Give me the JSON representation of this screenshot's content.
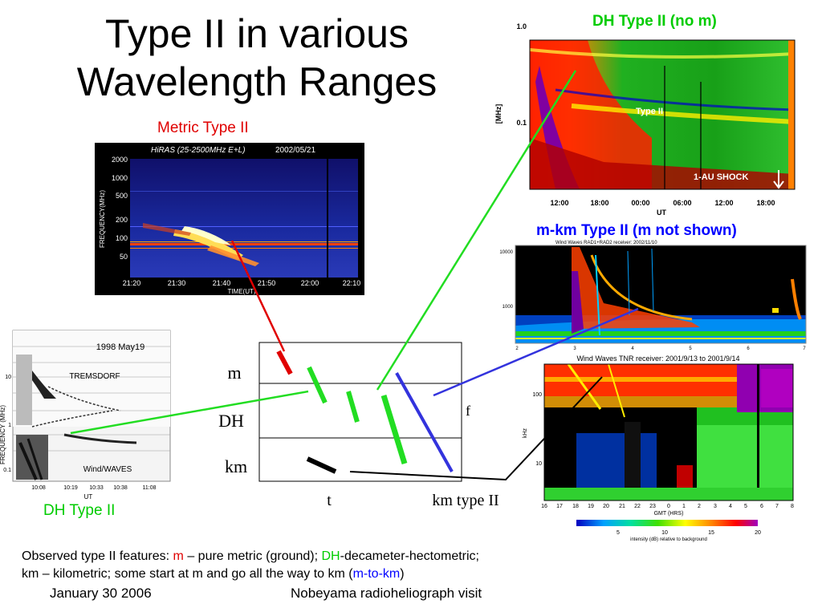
{
  "slide": {
    "title_line1": "Type II in various",
    "title_line2": "Wavelength Ranges"
  },
  "metric_panel": {
    "caption": "Metric Type II",
    "header_instrument": "HiRAS (25-2500MHz E+L)",
    "header_date": "2002/05/21",
    "ylabel": "FREQUENCY(MHz)",
    "yticks": [
      "2000",
      "1000",
      "500",
      "200",
      "100",
      "50"
    ],
    "xticks": [
      "21:20",
      "21:30",
      "21:40",
      "21:50",
      "22:00",
      "22:10"
    ],
    "xlabel": "TIME(UT)"
  },
  "dh_panel_top": {
    "caption": "DH  Type II (no m)",
    "ylabel": "[MHz]",
    "yticks": [
      "1.0",
      "0.1"
    ],
    "xticks": [
      "12:00",
      "18:00",
      "00:00",
      "06:00",
      "12:00",
      "18:00"
    ],
    "xlabel": "UT",
    "label_type2": "Type II",
    "label_shock": "1-AU SHOCK"
  },
  "mkm_panel": {
    "caption": "m-km Type II (m not shown)",
    "header": "Wind Waves RAD1+RAD2 receiver: 2002/11/10",
    "yticks": [
      "10000",
      "1000"
    ],
    "xticks": [
      "2",
      "3",
      "4",
      "5",
      "6",
      "7"
    ]
  },
  "dh_panel_left": {
    "caption": "DH Type II",
    "date": "1998  May19",
    "label_station": "TREMSDORF",
    "label_instrument": "Wind/WAVES",
    "ylabel": "FREQUENCY (MHz)",
    "yticks": [
      "10",
      "1",
      "0.1"
    ],
    "xticks": [
      "10:08",
      "10:19",
      "10:33",
      "10:38",
      "11:08"
    ],
    "xlabel": "UT"
  },
  "km_panel": {
    "header": "Wind Waves TNR receiver: 2001/9/13 to 2001/9/14",
    "ylabel": "kHz",
    "yticks": [
      "100",
      "10"
    ],
    "xticks": [
      "16",
      "17",
      "18",
      "19",
      "20",
      "21",
      "22",
      "23",
      "0",
      "1",
      "2",
      "3",
      "4",
      "5",
      "6",
      "7",
      "8"
    ],
    "xlabel": "GMT (HRS)",
    "colorbar_ticks": [
      "5",
      "10",
      "15",
      "20"
    ],
    "colorbar_label": "intensity (dB) relative to background"
  },
  "schematic": {
    "band_m": "m",
    "band_dh": "DH",
    "band_km": "km",
    "axis_t": "t",
    "axis_f": "f",
    "label_km_type2": "km type II"
  },
  "footer": {
    "note_prefix": "Observed type II features: ",
    "note_m": "m",
    "note_mid1": " – pure metric (ground); ",
    "note_dh": "DH",
    "note_mid2": "-decameter-hectometric;",
    "note_line2_prefix": "km – kilometric; some start at m and go all the way to km (",
    "note_mtokm": "m-to-km",
    "note_line2_suffix": ")",
    "date": "January 30 2006",
    "event": "Nobeyama radioheliograph visit"
  },
  "colors": {
    "red": "#e00000",
    "green": "#00cc00",
    "blue": "#0000ff",
    "link_green": "#22dd22",
    "link_blue": "#3333dd"
  }
}
